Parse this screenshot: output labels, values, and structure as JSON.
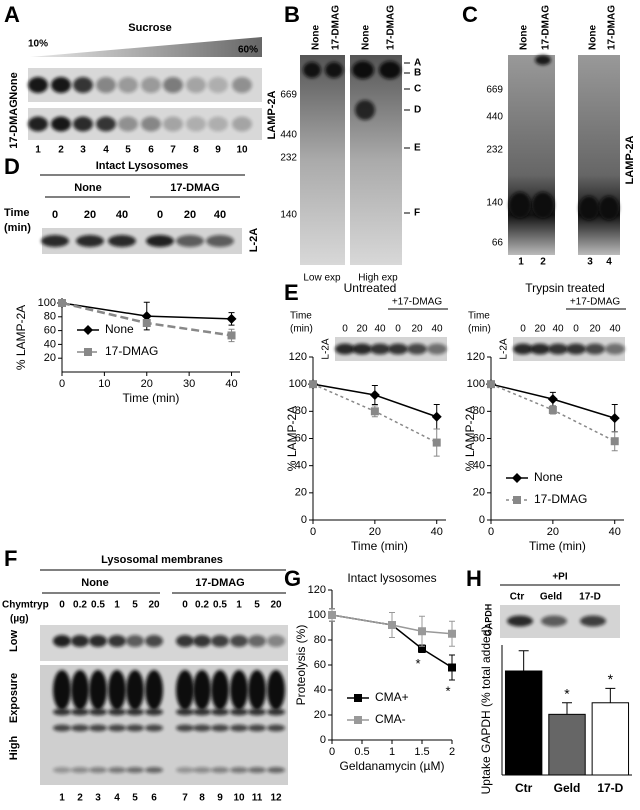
{
  "panels": {
    "A": {
      "label": "A",
      "gradient_label": "Sucrose",
      "gradient_start": "10%",
      "gradient_end": "60%",
      "rows": [
        "None",
        "17-DMAG"
      ],
      "lanes": [
        "1",
        "2",
        "3",
        "4",
        "5",
        "6",
        "7",
        "8",
        "9",
        "10"
      ]
    },
    "B": {
      "label": "B",
      "columns": [
        "None",
        "17-DMAG",
        "None",
        "17-DMAG"
      ],
      "markers": [
        "669",
        "440",
        "232",
        "140"
      ],
      "bands": [
        "A",
        "B",
        "C",
        "D",
        "E",
        "F"
      ],
      "protein": "LAMP-2A",
      "exposures": [
        "Low exp",
        "High exp"
      ]
    },
    "C": {
      "label": "C",
      "columns": [
        "None",
        "17-DMAG",
        "None",
        "17-DMAG"
      ],
      "markers": [
        "669",
        "440",
        "232",
        "140",
        "66"
      ],
      "protein": "LAMP-2A",
      "lanes": [
        "1",
        "2",
        "3",
        "4"
      ]
    },
    "D": {
      "label": "D",
      "title": "Intact Lysosomes",
      "groups": [
        "None",
        "17-DMAG"
      ],
      "time_label": [
        "Time",
        "(min)"
      ],
      "times": [
        "0",
        "20",
        "40",
        "0",
        "20",
        "40"
      ],
      "protein": "L-2A"
    },
    "E": {
      "label": "E",
      "blots": [
        {
          "time_label": [
            "Time",
            "(min)"
          ],
          "times": [
            "0",
            "20",
            "40",
            "0",
            "20",
            "40"
          ],
          "treatment": "+17-DMAG",
          "protein": "L-2A"
        },
        {
          "time_label": [
            "Time",
            "(min)"
          ],
          "times": [
            "0",
            "20",
            "40",
            "0",
            "20",
            "40"
          ],
          "treatment": "+17-DMAG",
          "protein": "L-2A"
        }
      ]
    },
    "F": {
      "label": "F",
      "title": "Lysosomal membranes",
      "groups": [
        "None",
        "17-DMAG"
      ],
      "dose_label": [
        "Chymtryp",
        "(µg)"
      ],
      "doses": [
        "0",
        "0.2",
        "0.5",
        "1",
        "5",
        "20",
        "0",
        "0.2",
        "0.5",
        "1",
        "5",
        "20"
      ],
      "exposure_label": "Exposure",
      "exposures": [
        "Low",
        "High"
      ],
      "lanes": [
        "1",
        "2",
        "3",
        "4",
        "5",
        "6",
        "7",
        "8",
        "9",
        "10",
        "11",
        "12"
      ]
    },
    "G": {
      "label": "G"
    },
    "H": {
      "label": "H",
      "treatment": "+PI",
      "lanes": [
        "Ctr",
        "Geld",
        "17-D"
      ],
      "protein": "GAPDH"
    }
  },
  "chart_data": [
    {
      "type": "line",
      "x": [
        0,
        20,
        40
      ],
      "xlabel": "Time (min)",
      "ylabel": "% LAMP-2A",
      "xlim": [
        0,
        42
      ],
      "xticks": [
        0,
        10,
        20,
        30,
        40
      ],
      "ylim": [
        0,
        100
      ],
      "yticks": [
        20,
        40,
        60,
        80,
        100
      ],
      "legend": "lower left",
      "series": [
        {
          "name": "None",
          "color": "#000000",
          "marker": "diamond",
          "dash": "solid",
          "values": [
            100,
            81,
            77
          ],
          "errors": [
            0,
            20,
            9
          ]
        },
        {
          "name": "17-DMAG",
          "color": "#888888",
          "marker": "square",
          "dash": "dashed",
          "values": [
            100,
            71,
            53
          ],
          "errors": [
            0,
            3,
            9
          ]
        }
      ]
    },
    {
      "type": "line",
      "title": "Untreated",
      "x": [
        0,
        20,
        40
      ],
      "xlabel": "Time (min)",
      "ylabel": "% LAMP-2A",
      "xlim": [
        0,
        43
      ],
      "xticks": [
        0,
        20,
        40
      ],
      "ylim": [
        0,
        120
      ],
      "yticks": [
        0,
        20,
        40,
        60,
        80,
        100,
        120
      ],
      "series": [
        {
          "color": "#000000",
          "marker": "diamond",
          "dash": "solid",
          "values": [
            100,
            92,
            76
          ],
          "errors": [
            0,
            7,
            9
          ]
        },
        {
          "color": "#888888",
          "marker": "square",
          "dash": "dotted",
          "values": [
            100,
            80,
            57
          ],
          "errors": [
            0,
            4,
            10
          ]
        }
      ]
    },
    {
      "type": "line",
      "title": "Trypsin treated",
      "x": [
        0,
        20,
        40
      ],
      "xlabel": "Time (min)",
      "ylabel": "% LAMP-2A",
      "xlim": [
        0,
        43
      ],
      "xticks": [
        0,
        20,
        40
      ],
      "ylim": [
        0,
        120
      ],
      "yticks": [
        0,
        20,
        40,
        60,
        80,
        100,
        120
      ],
      "legend": "lower left",
      "series": [
        {
          "name": "None",
          "color": "#000000",
          "marker": "diamond",
          "dash": "solid",
          "values": [
            100,
            89,
            75
          ],
          "errors": [
            0,
            5,
            10
          ]
        },
        {
          "name": "17-DMAG",
          "color": "#888888",
          "marker": "square",
          "dash": "dotted",
          "values": [
            100,
            81,
            58
          ],
          "errors": [
            0,
            3,
            7
          ]
        }
      ]
    },
    {
      "type": "line",
      "title": "Intact lysosomes",
      "x": [
        0,
        1,
        1.5,
        2
      ],
      "xlabel": "Geldanamycin (µM)",
      "ylabel": "Proteolysis (%)",
      "xlim": [
        0,
        2
      ],
      "xticks": [
        0,
        0.5,
        1,
        1.5,
        2
      ],
      "ylim": [
        0,
        120
      ],
      "yticks": [
        0,
        20,
        40,
        60,
        80,
        100,
        120
      ],
      "legend": "lower left",
      "series": [
        {
          "name": "CMA+",
          "color": "#000000",
          "marker": "square",
          "dash": "solid",
          "values": [
            100,
            92,
            73,
            58
          ],
          "errors": [
            5,
            10,
            3,
            10
          ]
        },
        {
          "name": "CMA-",
          "color": "#999999",
          "marker": "square",
          "dash": "solid",
          "values": [
            100,
            92,
            87,
            85
          ],
          "errors": [
            5,
            10,
            12,
            10
          ]
        }
      ],
      "significance": [
        "*",
        "*"
      ]
    },
    {
      "type": "bar",
      "ylabel": "Uptake GAPDH (% total added)",
      "categories": [
        "Ctr",
        "Geld",
        "17-D"
      ],
      "values": [
        36,
        21,
        25
      ],
      "errors": [
        7,
        4,
        5
      ],
      "colors": [
        "#000000",
        "#666666",
        "#ffffff"
      ],
      "ylim": [
        0,
        45
      ],
      "significance": [
        "*",
        "*"
      ]
    }
  ]
}
